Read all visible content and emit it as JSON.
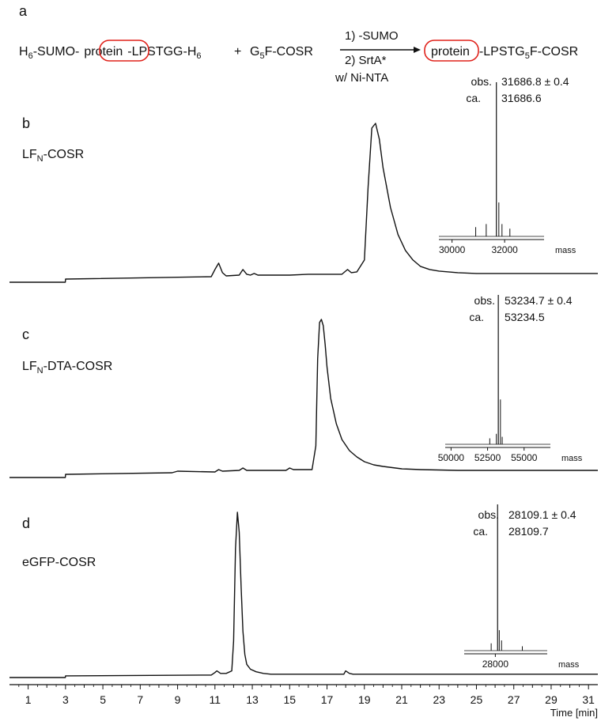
{
  "scheme": {
    "panel_label": "a",
    "reactant1": {
      "pre": "H",
      "pre_sub": "6",
      "pre2": "-SUMO-",
      "boxed": "protein",
      "post": "-LPSTGG-H",
      "post_sub": "6"
    },
    "plus": "+",
    "reactant2": {
      "pre": "G",
      "sub": "5",
      "post": "F-COSR"
    },
    "step1": "1) -SUMO",
    "step2": "2)  SrtA*",
    "step3": "w/ Ni-NTA",
    "product": {
      "boxed": "protein",
      "pre": "-LPSTG",
      "sub": "5",
      "post": "F-COSR"
    },
    "box_color": "#e0231c"
  },
  "chart_data": [
    {
      "type": "line",
      "panel": "b",
      "name_main": "LF",
      "name_sub": "N",
      "name_rest": "-COSR",
      "x": [
        0.0,
        2.99,
        3.0,
        10.8,
        11.0,
        11.2,
        11.4,
        11.6,
        12.3,
        12.5,
        12.7,
        12.9,
        13.1,
        13.3,
        15.0,
        16.0,
        17.8,
        18.1,
        18.3,
        18.6,
        19.0,
        19.2,
        19.4,
        19.6,
        19.8,
        20.0,
        20.4,
        20.8,
        21.2,
        21.6,
        22.0,
        22.5,
        23.0,
        24.0,
        25.0,
        31.5
      ],
      "y": [
        0.0,
        0.0,
        0.02,
        0.035,
        0.08,
        0.12,
        0.06,
        0.04,
        0.045,
        0.08,
        0.05,
        0.045,
        0.055,
        0.045,
        0.045,
        0.05,
        0.05,
        0.08,
        0.06,
        0.065,
        0.14,
        0.6,
        0.97,
        1.0,
        0.9,
        0.72,
        0.47,
        0.3,
        0.2,
        0.14,
        0.1,
        0.08,
        0.07,
        0.06,
        0.055,
        0.055
      ],
      "inset": {
        "obs_label": "obs.",
        "obs_value": "31686.8 ± 0.4",
        "calc_label": "ca.",
        "calc_value": "31686.6",
        "ticks": [
          "30000",
          "32000"
        ],
        "tick_values": [
          30000,
          32000
        ],
        "axis_label": "mass",
        "range": [
          29500,
          33500
        ],
        "peak": 31686.7,
        "peak_rel": 1.0,
        "satellites": [
          [
            30900,
            0.06
          ],
          [
            31300,
            0.08
          ],
          [
            31780,
            0.22
          ],
          [
            31900,
            0.08
          ],
          [
            32200,
            0.05
          ]
        ]
      }
    },
    {
      "type": "line",
      "panel": "c",
      "name_main": "LF",
      "name_sub": "N",
      "name_rest": "-DTA-COSR",
      "x": [
        0.0,
        2.99,
        3.0,
        8.7,
        9.0,
        11.0,
        11.2,
        11.4,
        12.3,
        12.5,
        12.7,
        14.8,
        15.0,
        15.2,
        16.2,
        16.4,
        16.5,
        16.6,
        16.7,
        16.8,
        16.9,
        17.0,
        17.2,
        17.5,
        17.8,
        18.2,
        18.6,
        19.0,
        19.5,
        20.0,
        21.0,
        22.0,
        24.0,
        31.5
      ],
      "y": [
        0.0,
        0.0,
        0.02,
        0.03,
        0.04,
        0.035,
        0.05,
        0.04,
        0.045,
        0.06,
        0.045,
        0.045,
        0.06,
        0.05,
        0.05,
        0.2,
        0.75,
        0.98,
        1.0,
        0.96,
        0.84,
        0.7,
        0.5,
        0.34,
        0.24,
        0.17,
        0.13,
        0.1,
        0.08,
        0.07,
        0.055,
        0.05,
        0.045,
        0.045
      ],
      "inset": {
        "obs_label": "obs.",
        "obs_value": "53234.7 ± 0.4",
        "calc_label": "ca.",
        "calc_value": "53234.5",
        "ticks": [
          "50000",
          "52500",
          "55000"
        ],
        "tick_values": [
          50000,
          52500,
          55000
        ],
        "axis_label": "mass",
        "range": [
          49600,
          56800
        ],
        "peak": 53234.6,
        "peak_rel": 1.0,
        "satellites": [
          [
            52650,
            0.04
          ],
          [
            53100,
            0.07
          ],
          [
            53380,
            0.3
          ],
          [
            53500,
            0.05
          ]
        ]
      }
    },
    {
      "type": "line",
      "panel": "d",
      "name_main": "eGFP-COSR",
      "name_sub": "",
      "name_rest": "",
      "x": [
        0.0,
        2.99,
        3.0,
        10.8,
        11.0,
        11.1,
        11.3,
        11.6,
        11.9,
        12.0,
        12.1,
        12.2,
        12.3,
        12.4,
        12.5,
        12.6,
        12.7,
        12.9,
        13.2,
        13.6,
        14.0,
        17.9,
        18.0,
        18.2,
        18.4,
        31.5
      ],
      "y": [
        0.0,
        0.0,
        0.01,
        0.015,
        0.03,
        0.04,
        0.025,
        0.025,
        0.04,
        0.22,
        0.78,
        1.0,
        0.88,
        0.55,
        0.28,
        0.14,
        0.08,
        0.05,
        0.035,
        0.025,
        0.02,
        0.02,
        0.04,
        0.025,
        0.02,
        0.02
      ],
      "inset": {
        "obs_label": "obs.",
        "obs_value": "28109.1 ± 0.4",
        "calc_label": "ca.",
        "calc_value": "28109.7",
        "ticks": [
          "28000"
        ],
        "tick_values": [
          28000
        ],
        "axis_label": "mass",
        "range": [
          26500,
          30500
        ],
        "peak": 28109.4,
        "peak_rel": 1.0,
        "satellites": [
          [
            27800,
            0.05
          ],
          [
            28190,
            0.14
          ],
          [
            28300,
            0.07
          ],
          [
            29300,
            0.03
          ]
        ]
      }
    }
  ],
  "x_axis": {
    "ticks": [
      1,
      3,
      5,
      7,
      9,
      11,
      13,
      15,
      17,
      19,
      21,
      23,
      25,
      27,
      29,
      31
    ],
    "label": "Time [min]",
    "range": [
      0,
      31.5
    ]
  }
}
